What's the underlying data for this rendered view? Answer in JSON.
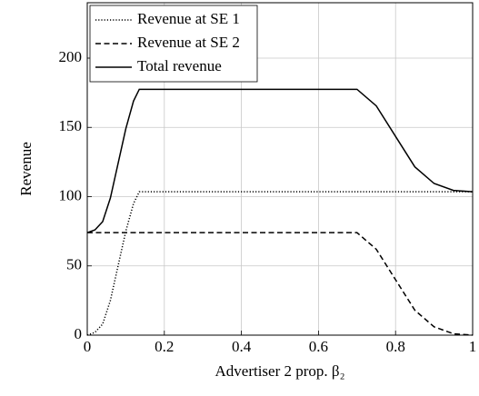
{
  "chart_data": {
    "type": "line",
    "xlabel": "Advertiser 2 prop. β₂",
    "ylabel": "Revenue",
    "x": [
      0,
      0.02,
      0.04,
      0.06,
      0.08,
      0.1,
      0.12,
      0.135,
      0.7,
      0.75,
      0.8,
      0.85,
      0.9,
      0.95,
      1
    ],
    "series": [
      {
        "name": "Revenue at SE 1",
        "color": "#000000",
        "dash": "dotted",
        "values": [
          0,
          2,
          8,
          25,
          50,
          75,
          95,
          103.5,
          103.5,
          103.5,
          103.5,
          103.5,
          103.5,
          103.5,
          103.5
        ]
      },
      {
        "name": "Revenue at SE 2",
        "color": "#000000",
        "dash": "dashed",
        "values": [
          74,
          74,
          74,
          74,
          74,
          74,
          74,
          74,
          74,
          62,
          40,
          18,
          6,
          1,
          0
        ]
      },
      {
        "name": "Total revenue",
        "color": "#000000",
        "dash": "solid",
        "values": [
          74,
          76,
          82,
          99,
          124,
          149,
          169,
          177.5,
          177.5,
          165.5,
          143.5,
          121.5,
          109.5,
          104.5,
          103.5
        ]
      }
    ],
    "xlim": [
      0,
      1
    ],
    "xticks": [
      0,
      0.2,
      0.4,
      0.6,
      0.8,
      1
    ],
    "ylim": [
      0,
      240
    ],
    "yticks": [
      0,
      50,
      100,
      150,
      200
    ],
    "grid": true,
    "legend": "upper left"
  }
}
